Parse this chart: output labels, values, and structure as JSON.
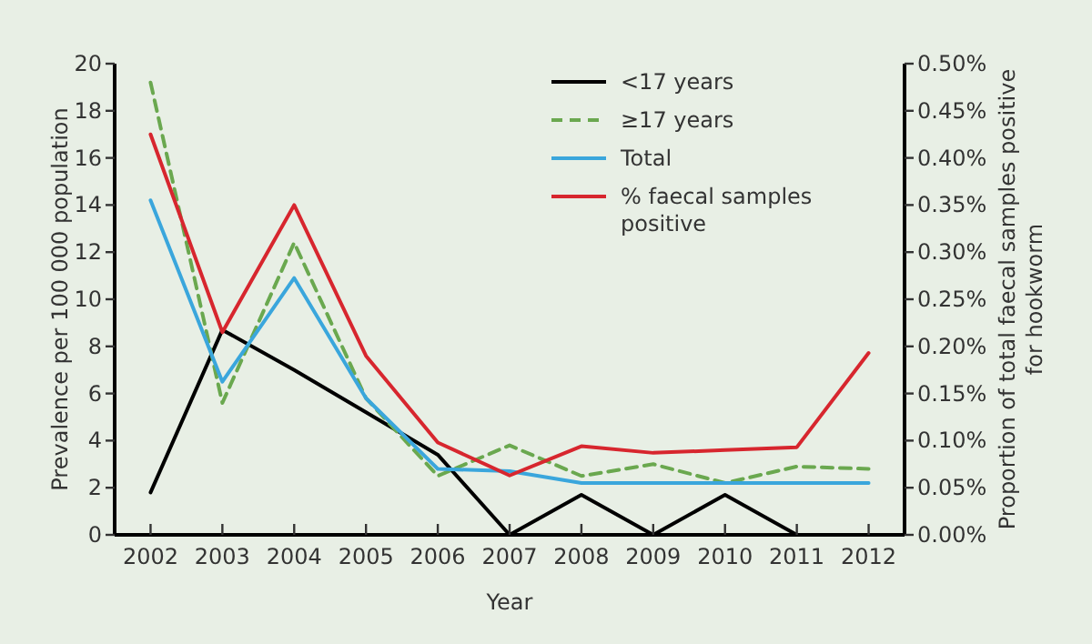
{
  "chart_data": {
    "type": "line",
    "xlabel": "Year",
    "ylabel": "Prevalence per 100 000 population",
    "y2label": "Proportion of total faecal samples positive for hookworm",
    "categories": [
      "2002",
      "2003",
      "2004",
      "2005",
      "2006",
      "2007",
      "2008",
      "2009",
      "2010",
      "2011",
      "2012"
    ],
    "series": [
      {
        "name": "<17 years",
        "color": "#000000",
        "line_style": "solid",
        "values": [
          1.8,
          8.7,
          7.0,
          5.2,
          3.4,
          0,
          1.7,
          0,
          1.7,
          0,
          0
        ]
      },
      {
        "name": "≥17 years",
        "color": "#6aa84f",
        "line_style": "dashed",
        "values": [
          19.2,
          5.6,
          12.4,
          5.8,
          2.5,
          3.8,
          2.5,
          3.0,
          2.2,
          2.9,
          2.8
        ]
      },
      {
        "name": "Total",
        "color": "#3aa6dc",
        "line_style": "solid",
        "values": [
          14.2,
          6.5,
          10.9,
          5.8,
          2.8,
          2.7,
          2.2,
          2.2,
          2.2,
          2.2,
          2.2
        ]
      },
      {
        "name": "% faecal samples positive",
        "color": "#d7262e",
        "line_style": "solid",
        "axis": "y2",
        "values": [
          0.425,
          0.215,
          0.35,
          0.19,
          0.098,
          0.063,
          0.094,
          0.087,
          0.09,
          0.093,
          0.193
        ]
      }
    ],
    "ylim": [
      0,
      20
    ],
    "yticks": [
      0,
      2,
      4,
      6,
      8,
      10,
      12,
      14,
      16,
      18,
      20
    ],
    "y2lim": [
      0,
      0.5
    ],
    "y2ticks": [
      {
        "value": 0,
        "label": "0.00%"
      },
      {
        "value": 0.05,
        "label": "0.05%"
      },
      {
        "value": 0.1,
        "label": "0.10%"
      },
      {
        "value": 0.15,
        "label": "0.15%"
      },
      {
        "value": 0.2,
        "label": "0.20%"
      },
      {
        "value": 0.25,
        "label": "0.25%"
      },
      {
        "value": 0.3,
        "label": "0.30%"
      },
      {
        "value": 0.35,
        "label": "0.35%"
      },
      {
        "value": 0.4,
        "label": "0.40%"
      },
      {
        "value": 0.45,
        "label": "0.45%"
      },
      {
        "value": 0.5,
        "label": "0.50%"
      }
    ],
    "grid": false,
    "legend": "top right",
    "marker": "none"
  }
}
